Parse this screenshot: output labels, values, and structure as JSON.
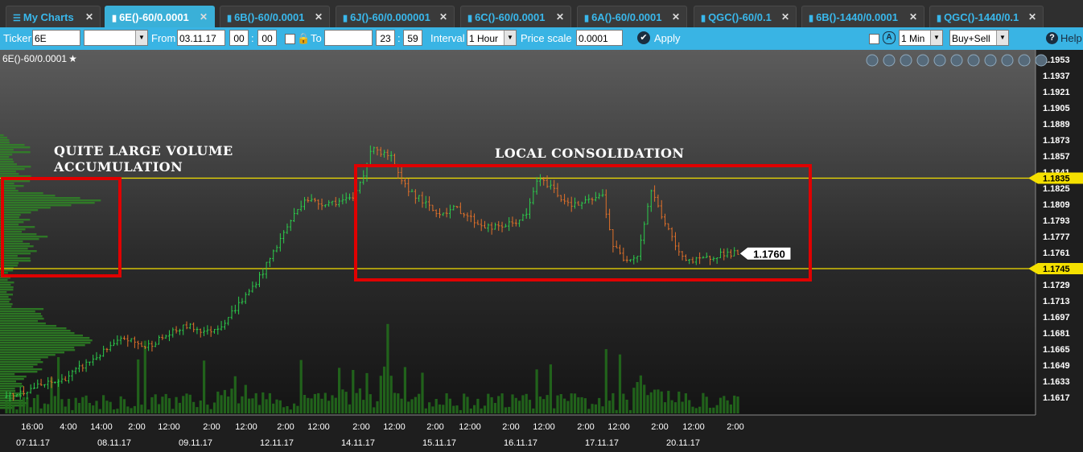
{
  "tabs": [
    {
      "label": "My Charts",
      "icon": "menu-icon",
      "active": false
    },
    {
      "label": "6E()-60/0.0001",
      "icon": "bar-chart-icon",
      "active": true
    },
    {
      "label": "6B()-60/0.0001",
      "icon": "bar-chart-icon",
      "active": false
    },
    {
      "label": "6J()-60/0.000001",
      "icon": "bar-chart-icon",
      "active": false
    },
    {
      "label": "6C()-60/0.0001",
      "icon": "bar-chart-icon",
      "active": false
    },
    {
      "label": "6A()-60/0.0001",
      "icon": "bar-chart-icon",
      "active": false
    },
    {
      "label": "QGC()-60/0.1",
      "icon": "bar-chart-icon",
      "active": false
    },
    {
      "label": "6B()-1440/0.0001",
      "icon": "bar-chart-icon",
      "active": false
    },
    {
      "label": "QGC()-1440/0.1",
      "icon": "bar-chart-icon",
      "active": false
    }
  ],
  "toolbar": {
    "ticker_label": "Ticker",
    "ticker_value": "6E",
    "from_label": "From",
    "from_date": "03.11.17",
    "from_hour": "00",
    "from_min": "00",
    "to_label": "To",
    "to_date": "",
    "to_hour": "23",
    "to_min": "59",
    "interval_label": "Interval",
    "interval_value": "1 Hour",
    "price_scale_label": "Price scale",
    "price_scale_value": "0.0001",
    "apply_label": "Apply",
    "timeframe_value": "1 Min",
    "side_value": "Buy+Sell",
    "help_label": "Help"
  },
  "chart": {
    "title": "6E()-60/0.0001",
    "annotations": {
      "left_line1": "QUITE LARGE VOLUME",
      "left_line2": "ACCUMULATION",
      "right": "LOCAL CONSOLIDATION"
    },
    "last_price": "1.1760",
    "level_upper": "1.1835",
    "level_lower": "1.1745",
    "colors": {
      "up": "#2ccc4c",
      "down": "#e0702a",
      "level": "#f4e000",
      "box": "#e00000",
      "profile": "#2e8a24"
    }
  },
  "chart_data": {
    "type": "bar",
    "y_ticks": [
      "1.1953",
      "1.1937",
      "1.1921",
      "1.1905",
      "1.1889",
      "1.1873",
      "1.1857",
      "1.1841",
      "1.1825",
      "1.1809",
      "1.1793",
      "1.1777",
      "1.1761",
      "1.1745",
      "1.1729",
      "1.1713",
      "1.1697",
      "1.1681",
      "1.1665",
      "1.1649",
      "1.1633",
      "1.1617"
    ],
    "ylim": [
      1.1609,
      1.1961
    ],
    "x_time_ticks": [
      "16:00",
      "4:00",
      "14:00",
      "2:00",
      "12:00",
      "2:00",
      "12:00",
      "2:00",
      "12:00",
      "2:00",
      "12:00",
      "2:00",
      "12:00",
      "2:00",
      "12:00",
      "2:00",
      "12:00",
      "2:00",
      "12:00",
      "2:00"
    ],
    "x_date_ticks": [
      "07.11.17",
      "08.11.17",
      "09.11.17",
      "12.11.17",
      "14.11.17",
      "15.11.17",
      "16.11.17",
      "17.11.17",
      "20.11.17"
    ],
    "levels": [
      1.1835,
      1.1745
    ],
    "last_price": 1.176,
    "close_path": [
      [
        0,
        1.1617
      ],
      [
        8,
        1.1627
      ],
      [
        16,
        1.1634
      ],
      [
        22,
        1.1648
      ],
      [
        28,
        1.1662
      ],
      [
        34,
        1.1676
      ],
      [
        40,
        1.1667
      ],
      [
        46,
        1.1678
      ],
      [
        52,
        1.1688
      ],
      [
        58,
        1.1682
      ],
      [
        62,
        1.1689
      ],
      [
        70,
        1.1722
      ],
      [
        74,
        1.1742
      ],
      [
        78,
        1.1768
      ],
      [
        82,
        1.1793
      ],
      [
        86,
        1.1815
      ],
      [
        90,
        1.181
      ],
      [
        96,
        1.1812
      ],
      [
        100,
        1.1814
      ],
      [
        103,
        1.184
      ],
      [
        106,
        1.1868
      ],
      [
        108,
        1.186
      ],
      [
        111,
        1.1855
      ],
      [
        114,
        1.183
      ],
      [
        118,
        1.1818
      ],
      [
        124,
        1.18
      ],
      [
        130,
        1.1805
      ],
      [
        136,
        1.179
      ],
      [
        140,
        1.1785
      ],
      [
        146,
        1.179
      ],
      [
        150,
        1.1798
      ],
      [
        153,
        1.1833
      ],
      [
        157,
        1.1828
      ],
      [
        160,
        1.1815
      ],
      [
        164,
        1.1808
      ],
      [
        168,
        1.1812
      ],
      [
        172,
        1.1818
      ],
      [
        175,
        1.1768
      ],
      [
        178,
        1.1755
      ],
      [
        182,
        1.1758
      ],
      [
        186,
        1.1823
      ],
      [
        190,
        1.179
      ],
      [
        194,
        1.176
      ],
      [
        198,
        1.1752
      ],
      [
        202,
        1.1755
      ],
      [
        206,
        1.176
      ]
    ]
  }
}
